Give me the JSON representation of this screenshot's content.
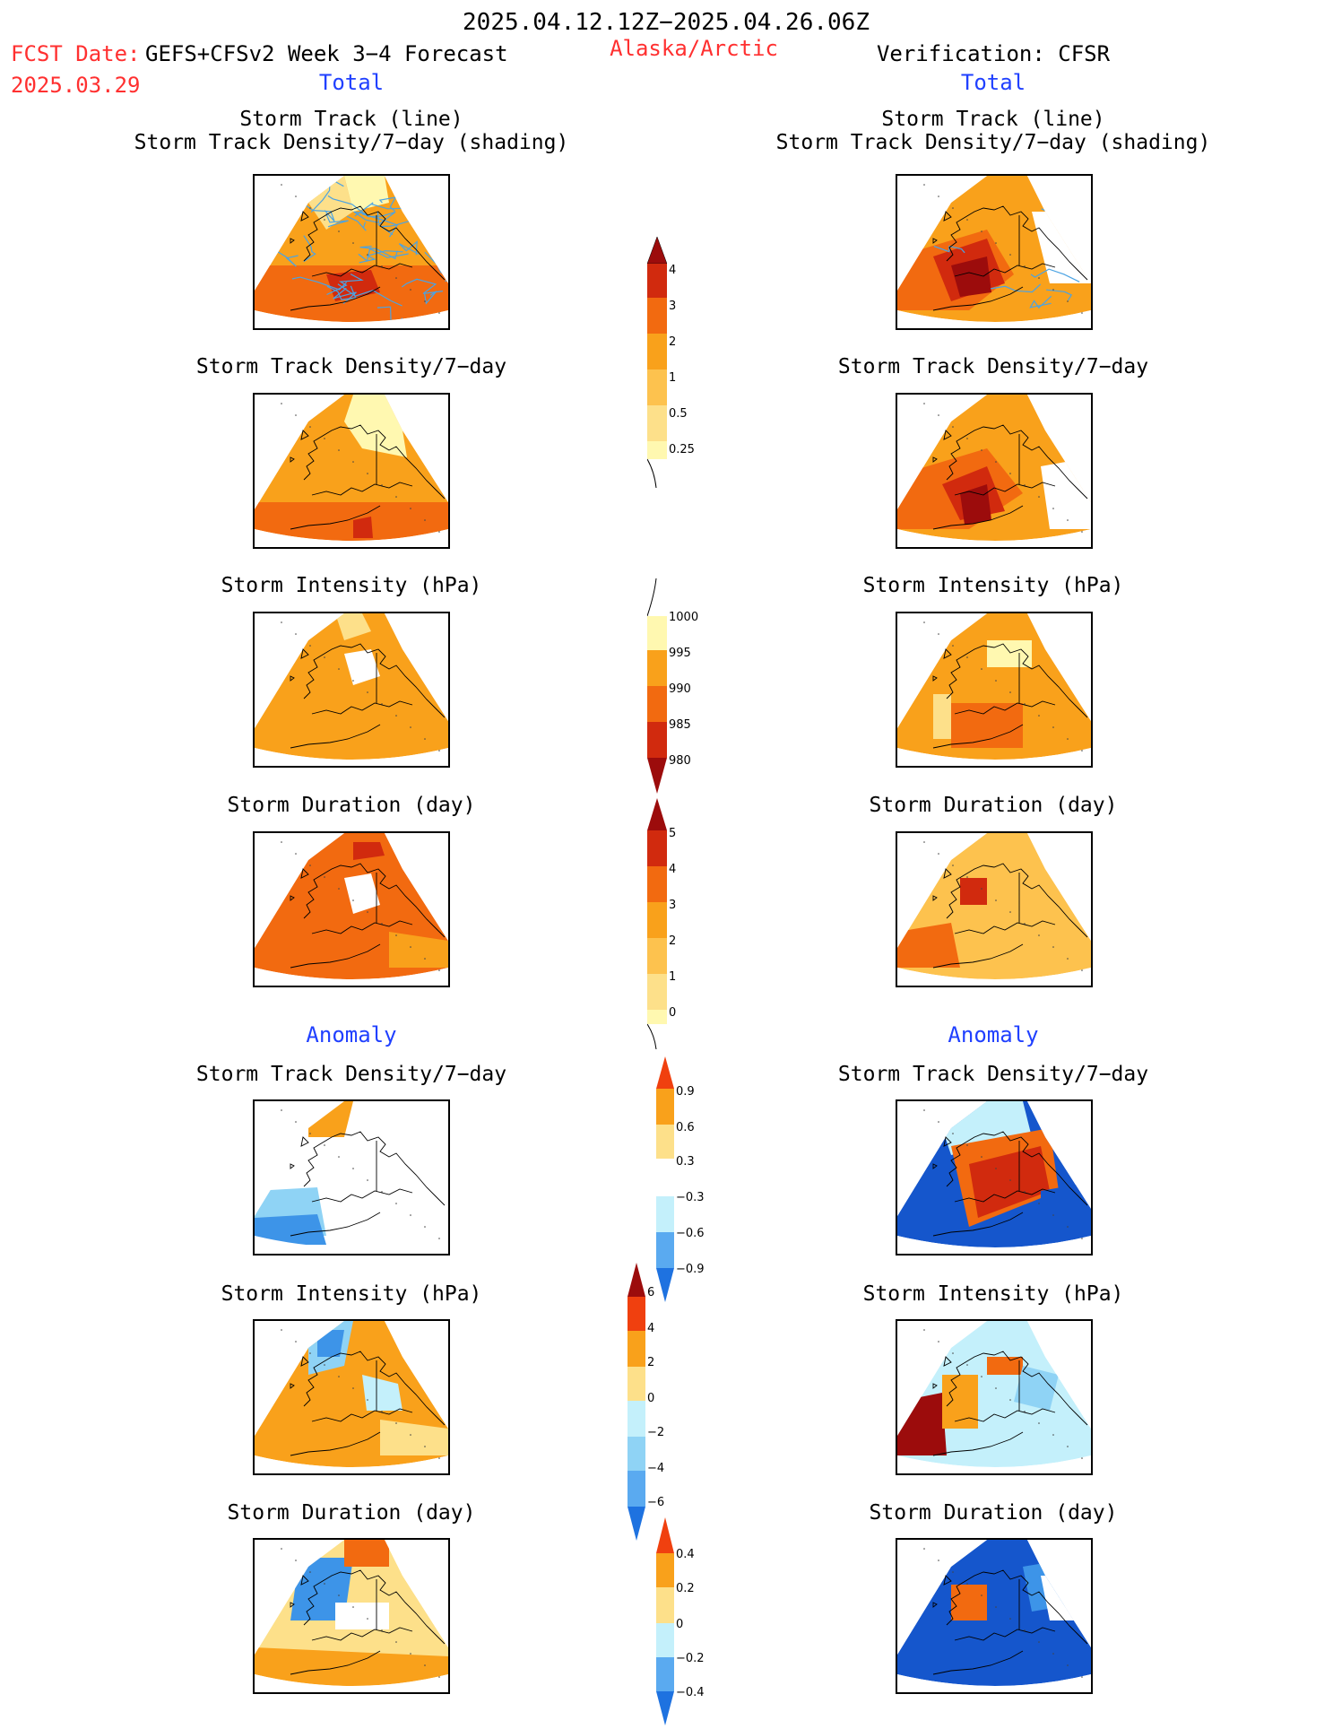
{
  "header": {
    "date_range": "2025.04.12.12Z−2025.04.26.06Z",
    "fcst_date_label": "FCST Date:",
    "fcst_date": "2025.03.29",
    "model": "GEFS+CFSv2 Week 3−4 Forecast",
    "region": "Alaska/Arctic",
    "verification": "Verification: CFSR"
  },
  "sections": {
    "total_left": "Total",
    "total_right": "Total",
    "anomaly_left": "Anomaly",
    "anomaly_right": "Anomaly"
  },
  "titles": {
    "track_line": "Storm Track (line)",
    "track_shading": "Storm Track Density/7−day (shading)",
    "density": "Storm Track Density/7−day",
    "intensity": "Storm Intensity (hPa)",
    "duration": "Storm Duration (day)"
  },
  "colorbars": {
    "density_total": [
      "4",
      "3",
      "2",
      "1",
      "0.5",
      "0.25"
    ],
    "intensity_total": [
      "1000",
      "995",
      "990",
      "985",
      "980"
    ],
    "duration_total": [
      "5",
      "4",
      "3",
      "2",
      "1",
      "0"
    ],
    "density_anom": [
      "0.9",
      "0.6",
      "0.3",
      "−0.3",
      "−0.6",
      "−0.9"
    ],
    "intensity_anom": [
      "6",
      "4",
      "2",
      "0",
      "−2",
      "−4",
      "−6"
    ],
    "duration_anom": [
      "0.4",
      "0.2",
      "0",
      "−0.2",
      "−0.4"
    ]
  },
  "colors": {
    "warm": [
      "#fff8b0",
      "#fde08a",
      "#f9a11b",
      "#f26a10",
      "#d12a0e",
      "#9c0c0c"
    ],
    "cool": [
      "#c4f0fb",
      "#8fd3f5",
      "#3d94e8",
      "#1556cc"
    ],
    "track_line": "#4ba3e3"
  }
}
